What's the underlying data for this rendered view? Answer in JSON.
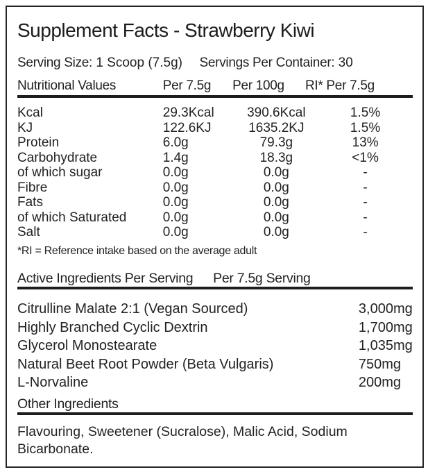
{
  "title": "Supplement Facts - Strawberry Kiwi",
  "serving": {
    "size_label": "Serving Size:",
    "size_value": "1 Scoop (7.5g)",
    "per_container_label": "Servings Per Container:",
    "per_container_value": "30"
  },
  "nutrition": {
    "headers": [
      "Nutritional Values",
      "Per 7.5g",
      "Per 100g",
      "RI* Per 7.5g"
    ],
    "rows": [
      {
        "name": "Kcal",
        "per_7_5g": "29.3Kcal",
        "per_100g": "390.6Kcal",
        "ri": "1.5%"
      },
      {
        "name": "KJ",
        "per_7_5g": "122.6KJ",
        "per_100g": "1635.2KJ",
        "ri": "1.5%"
      },
      {
        "name": "Protein",
        "per_7_5g": "6.0g",
        "per_100g": "79.3g",
        "ri": "13%"
      },
      {
        "name": "Carbohydrate",
        "per_7_5g": "1.4g",
        "per_100g": "18.3g",
        "ri": "<1%"
      },
      {
        "name": "of which sugar",
        "per_7_5g": "0.0g",
        "per_100g": "0.0g",
        "ri": "-"
      },
      {
        "name": "Fibre",
        "per_7_5g": "0.0g",
        "per_100g": "0.0g",
        "ri": "-"
      },
      {
        "name": "Fats",
        "per_7_5g": "0.0g",
        "per_100g": "0.0g",
        "ri": "-"
      },
      {
        "name": "of which Saturated",
        "per_7_5g": "0.0g",
        "per_100g": "0.0g",
        "ri": "-"
      },
      {
        "name": "Salt",
        "per_7_5g": "0.0g",
        "per_100g": "0.0g",
        "ri": "-"
      }
    ],
    "footnote": "*RI = Reference intake based on the average adult"
  },
  "active": {
    "header_left": "Active Ingredients Per Serving",
    "header_right": "Per 7.5g Serving",
    "rows": [
      {
        "name": "Citrulline Malate 2:1 (Vegan Sourced)",
        "amount": "3,000mg"
      },
      {
        "name": "Highly Branched Cyclic Dextrin",
        "amount": "1,700mg"
      },
      {
        "name": "Glycerol Monostearate",
        "amount": "1,035mg"
      },
      {
        "name": "Natural Beet Root Powder (Beta Vulgaris)",
        "amount": "750mg"
      },
      {
        "name": "L-Norvaline",
        "amount": "200mg"
      }
    ]
  },
  "other": {
    "header": "Other Ingredients",
    "text": "Flavouring, Sweetener (Sucralose), Malic Acid, Sodium Bicarbonate."
  },
  "colors": {
    "text": "#222222",
    "border": "#262626",
    "rule": "#1d1d1d",
    "background": "#ffffff"
  }
}
